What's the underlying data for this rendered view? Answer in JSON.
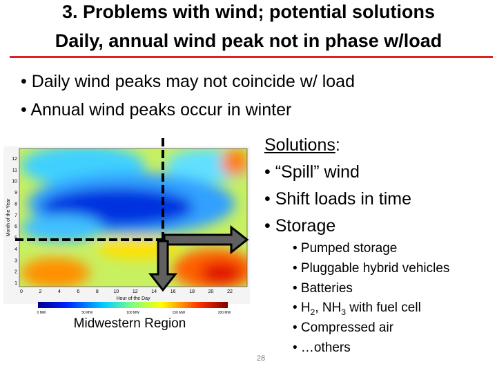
{
  "header": {
    "title_line1": "3. Problems with wind; potential solutions",
    "title_line2": "Daily, annual wind peak not in phase w/load"
  },
  "bullets": [
    "• Daily wind peaks may not coincide w/ load",
    "• Annual wind peaks occur in winter"
  ],
  "figure": {
    "y_label": "Month of the Year",
    "x_label": "Hour of the Day",
    "y_ticks": [
      1,
      2,
      3,
      4,
      5,
      6,
      7,
      8,
      9,
      10,
      11,
      12
    ],
    "x_ticks": [
      0,
      2,
      4,
      6,
      8,
      10,
      12,
      14,
      16,
      18,
      20,
      22
    ],
    "colorbar_labels": [
      "0 MW",
      "50 MW",
      "100 MW",
      "150 MW",
      "200 MW"
    ],
    "caption": "Midwestern Region"
  },
  "solutions": {
    "heading": "Solutions",
    "colon": ":",
    "items": [
      "• “Spill” wind",
      "• Shift loads in time",
      "• Storage"
    ],
    "sub_items": [
      "• Pumped storage",
      "• Pluggable hybrid vehicles",
      "• Batteries",
      {
        "parts": [
          "• H",
          "2",
          ", NH",
          "3",
          " with fuel cell"
        ]
      },
      "• Compressed air",
      "• …others"
    ]
  },
  "page_number": "28"
}
